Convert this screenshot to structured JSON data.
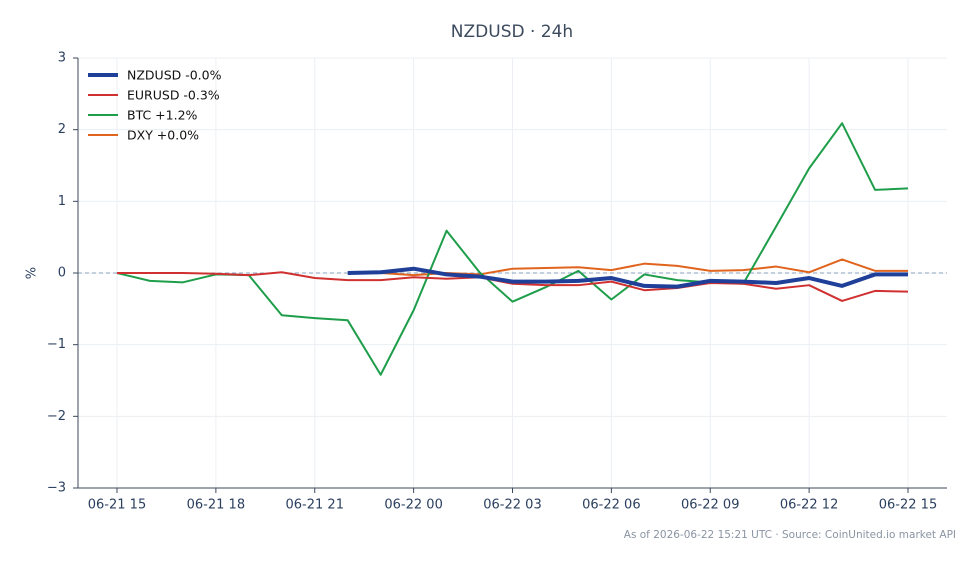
{
  "chart_data": {
    "type": "line",
    "title": "NZDUSD · 24h",
    "ylabel": "%",
    "source": "As of 2026-06-22 15:21 UTC · Source: CoinUnited.io market API",
    "categories": [
      "06-21 15",
      null,
      null,
      "06-21 18",
      null,
      null,
      "06-21 21",
      null,
      null,
      "06-22 00",
      null,
      null,
      "06-22 03",
      null,
      null,
      "06-22 06",
      null,
      null,
      "06-22 09",
      null,
      null,
      "06-22 12",
      null,
      null,
      "06-22 15"
    ],
    "ylim": [
      -3,
      3
    ],
    "yticks": [
      {
        "value": -3,
        "label": "−3"
      },
      {
        "value": -2,
        "label": "−2"
      },
      {
        "value": -1,
        "label": "−1"
      },
      0,
      1,
      2,
      3
    ],
    "grid": true,
    "legend": "upper left",
    "series": [
      {
        "name": "NZDUSD -0.0%",
        "color": "#1f3f99",
        "line_width": 4,
        "values": [
          null,
          null,
          null,
          null,
          null,
          null,
          null,
          0.0,
          0.01,
          0.06,
          -0.02,
          -0.05,
          -0.12,
          -0.12,
          -0.11,
          -0.07,
          -0.18,
          -0.19,
          -0.11,
          -0.12,
          -0.14,
          -0.07,
          -0.18,
          -0.02,
          -0.02
        ]
      },
      {
        "name": "EURUSD -0.3%",
        "color": "#d03030",
        "line_width": 2,
        "values": [
          0,
          0.0,
          0.0,
          -0.01,
          -0.03,
          0.01,
          -0.07,
          -0.1,
          -0.1,
          -0.06,
          -0.08,
          -0.06,
          -0.15,
          -0.17,
          -0.17,
          -0.12,
          -0.24,
          -0.21,
          -0.14,
          -0.15,
          -0.22,
          -0.17,
          -0.39,
          -0.25,
          -0.26
        ]
      },
      {
        "name": "BTC +1.2%",
        "color": "#1e9e4a",
        "line_width": 2,
        "values": [
          0,
          -0.11,
          -0.13,
          -0.02,
          -0.03,
          -0.59,
          -0.63,
          -0.66,
          -1.42,
          -0.52,
          0.59,
          0.01,
          -0.4,
          -0.2,
          0.03,
          -0.37,
          -0.02,
          -0.1,
          -0.13,
          -0.15,
          0.65,
          1.46,
          2.09,
          1.16,
          1.18
        ]
      },
      {
        "name": "DXY +0.0%",
        "color": "#e0641e",
        "line_width": 2,
        "values": [
          null,
          null,
          null,
          null,
          null,
          null,
          null,
          null,
          0.0,
          -0.03,
          0.0,
          -0.02,
          0.06,
          0.07,
          0.08,
          0.04,
          0.13,
          0.1,
          0.03,
          0.04,
          0.09,
          0.01,
          0.19,
          0.03,
          0.03
        ]
      }
    ]
  }
}
